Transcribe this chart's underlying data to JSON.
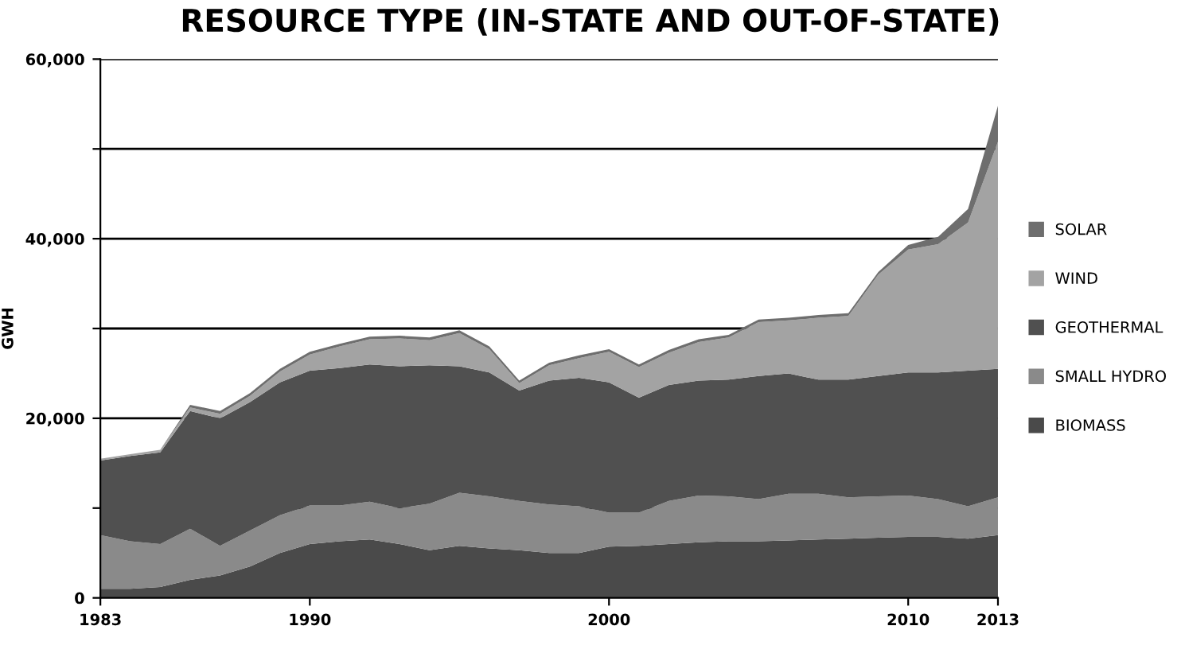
{
  "chart_data": {
    "type": "area",
    "stacked": true,
    "title": "RESOURCE TYPE (IN-STATE AND OUT-OF-STATE)",
    "ylabel": "GWH",
    "x": [
      1983,
      1984,
      1985,
      1986,
      1987,
      1988,
      1989,
      1990,
      1991,
      1992,
      1993,
      1994,
      1995,
      1996,
      1997,
      1998,
      1999,
      2000,
      2001,
      2002,
      2003,
      2004,
      2005,
      2006,
      2007,
      2008,
      2009,
      2010,
      2011,
      2012,
      2013
    ],
    "series": [
      {
        "name": "BIOMASS",
        "color": "#4a4a4a",
        "values": [
          1000,
          1000,
          1200,
          2000,
          2500,
          3500,
          5000,
          6000,
          6300,
          6500,
          6000,
          5300,
          5800,
          5500,
          5300,
          5000,
          5000,
          5700,
          5800,
          6000,
          6200,
          6300,
          6300,
          6400,
          6500,
          6600,
          6700,
          6800,
          6800,
          6600,
          7000
        ]
      },
      {
        "name": "SMALL HYDRO",
        "color": "#8a8a8a",
        "values": [
          6000,
          5300,
          4800,
          5700,
          3300,
          4000,
          4200,
          4300,
          4000,
          4200,
          4000,
          5200,
          5900,
          5800,
          5500,
          5400,
          5200,
          3800,
          3700,
          4800,
          5200,
          5000,
          4700,
          5200,
          5100,
          4600,
          4600,
          4600,
          4200,
          3600,
          4200
        ]
      },
      {
        "name": "GEOTHERMAL",
        "color": "#505050",
        "values": [
          8300,
          9500,
          10200,
          13100,
          14200,
          14300,
          14800,
          15000,
          15300,
          15300,
          15800,
          15400,
          14100,
          13800,
          12300,
          13800,
          14300,
          14500,
          12800,
          12900,
          12800,
          13000,
          13700,
          13400,
          12700,
          13100,
          13400,
          13700,
          14100,
          15100,
          14300
        ]
      },
      {
        "name": "WIND",
        "color": "#a3a3a3",
        "values": [
          200,
          200,
          300,
          400,
          500,
          700,
          1200,
          1800,
          2400,
          2800,
          3100,
          2800,
          3700,
          2600,
          800,
          1700,
          2200,
          3400,
          3400,
          3600,
          4300,
          4700,
          6000,
          5900,
          6900,
          7100,
          11300,
          13700,
          14300,
          16500,
          25300
        ]
      },
      {
        "name": "SOLAR",
        "color": "#6e6e6e",
        "values": [
          0,
          0,
          0,
          300,
          300,
          300,
          300,
          300,
          300,
          300,
          300,
          300,
          300,
          300,
          300,
          300,
          300,
          300,
          300,
          300,
          300,
          300,
          300,
          300,
          300,
          300,
          300,
          500,
          800,
          1500,
          4000
        ]
      }
    ],
    "xlim": [
      1983,
      2013
    ],
    "xticks": [
      1983,
      1990,
      2000,
      2010,
      2013
    ],
    "ylim": [
      0,
      60000
    ],
    "yticks": [
      0,
      {
        "value": 10000,
        "label": null
      },
      {
        "value": 20000,
        "label": "20,000"
      },
      {
        "value": 30000,
        "label": null
      },
      {
        "value": 40000,
        "label": "40,000"
      },
      {
        "value": 50000,
        "label": null
      },
      {
        "value": 60000,
        "label": "60,000"
      }
    ],
    "grid": "y",
    "legend": "right"
  }
}
